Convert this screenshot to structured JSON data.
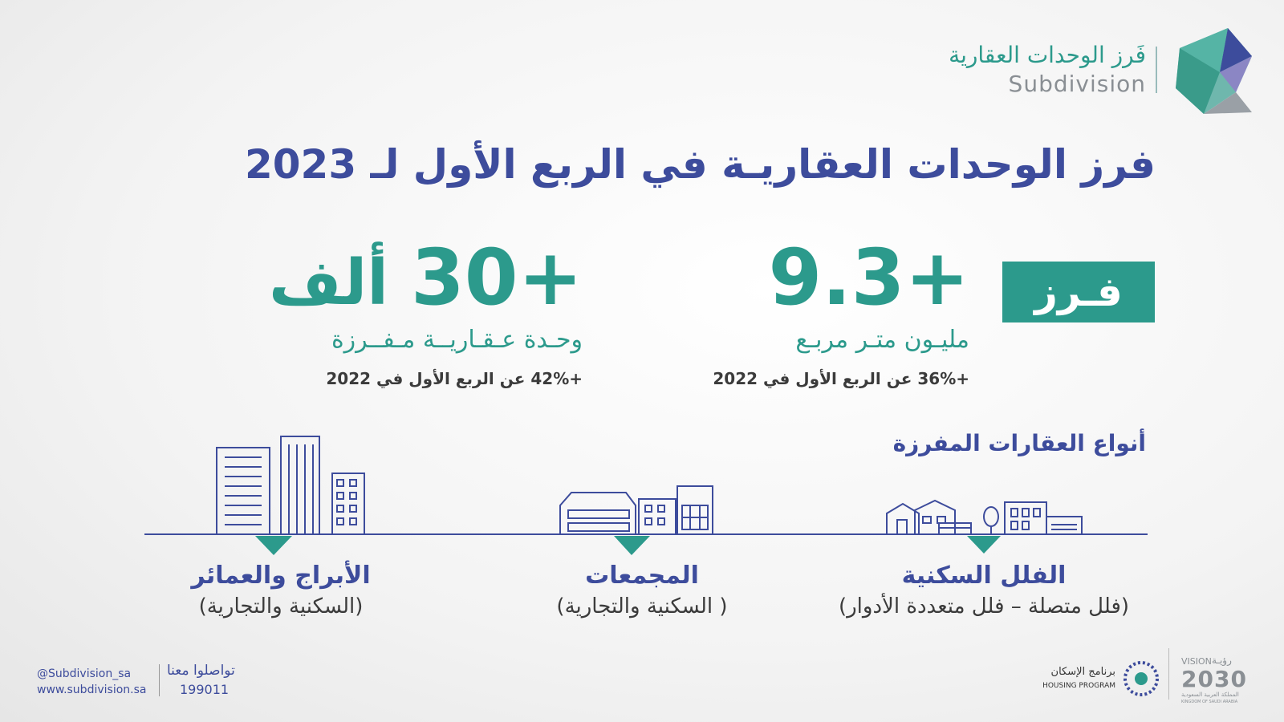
{
  "logo": {
    "arabic": "فَرز الوحدات العقارية",
    "english": "Subdivision"
  },
  "title": "فرز الوحدات العقاريـة في الربع الأول لـ 2023",
  "badge": "فـرز",
  "stats": [
    {
      "number": "9.3+",
      "unit": "مليـون متـر مربـع",
      "change": "+36% عن الربع الأول في 2022"
    },
    {
      "number": "30+",
      "suffix": "ألف",
      "unit": "وحـدة عـقـاريــة مـفــرزة",
      "change": "+42% عن الربع الأول في 2022"
    }
  ],
  "section_title": "أنواع العقارات المفرزة",
  "types": [
    {
      "name": "الفلل السكنية",
      "detail": "(فلل متصلة – فلل متعددة الأدوار)"
    },
    {
      "name": "المجمعات",
      "detail": "( السكنية والتجارية)"
    },
    {
      "name": "الأبراج والعمائر",
      "detail": "(السكنية والتجارية)"
    }
  ],
  "footer": {
    "handle": "@Subdivision_sa",
    "website": "www.subdivision.sa",
    "contact": "تواصلوا معنا",
    "phone": "199011",
    "housing_ar": "برنامج الإسكان",
    "housing_en": "HOUSING PROGRAM",
    "vision_en": "VISION",
    "vision_ar": "رؤيـة",
    "vision_year": "2030",
    "kingdom_ar": "المملكة العربية السعودية",
    "kingdom_en": "KINGDOM OF SAUDI ARABIA"
  }
}
